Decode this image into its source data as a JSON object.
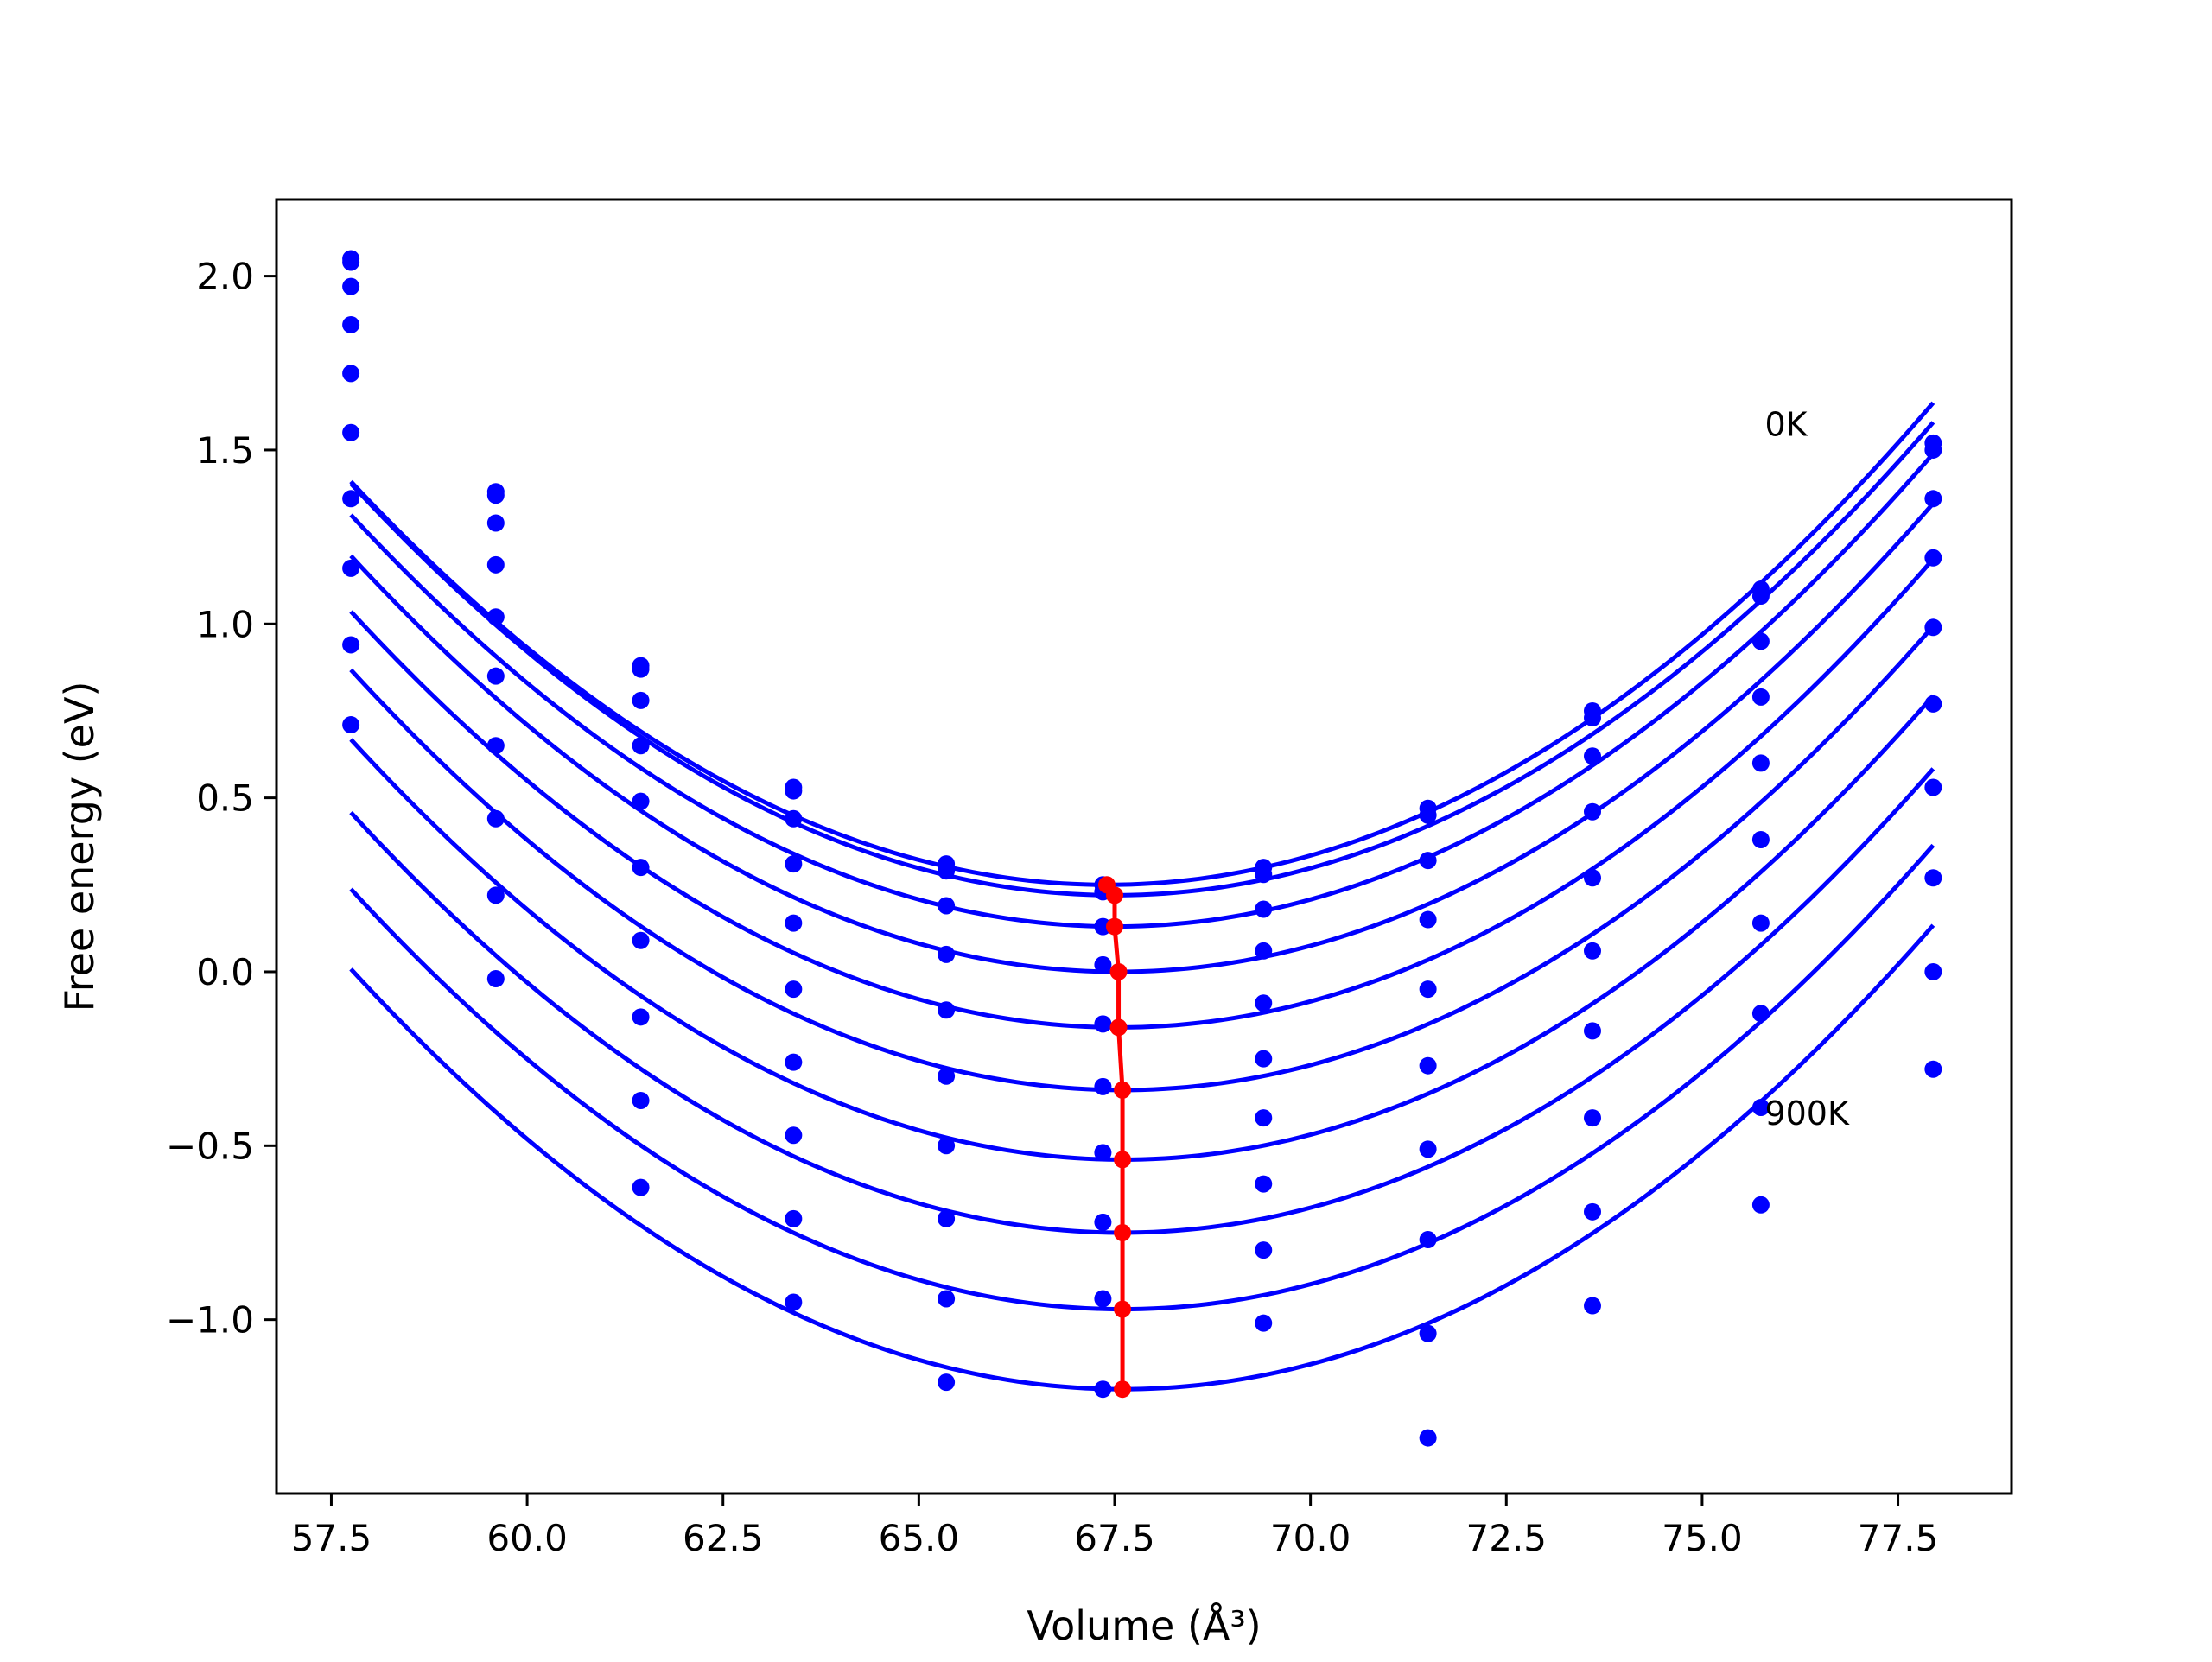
{
  "chart_data": {
    "type": "line",
    "xlabel": "Volume (Å³)",
    "ylabel": "Free energy (eV)",
    "xlim": [
      56.8,
      78.95
    ],
    "ylim": [
      -1.5,
      2.22
    ],
    "xticks": [
      57.5,
      60.0,
      62.5,
      65.0,
      67.5,
      70.0,
      72.5,
      75.0,
      77.5
    ],
    "xtick_labels": [
      "57.5",
      "60.0",
      "62.5",
      "65.0",
      "67.5",
      "70.0",
      "72.5",
      "75.0",
      "77.5"
    ],
    "yticks": [
      -1.0,
      -0.5,
      0.0,
      0.5,
      1.0,
      1.5,
      2.0
    ],
    "ytick_labels": [
      "−1.0",
      "−0.5",
      "0.0",
      "0.5",
      "1.0",
      "1.5",
      "2.0"
    ],
    "grid": false,
    "volumes": [
      57.75,
      59.6,
      61.45,
      63.4,
      65.35,
      67.35,
      69.4,
      71.5,
      73.6,
      75.75,
      77.95
    ],
    "series": [
      {
        "color": "#0000ff",
        "fit": [
          0.25,
          0.01245,
          67.4
        ],
        "points": [
          2.05,
          1.38,
          0.88,
          0.53,
          0.31,
          0.25,
          0.3,
          0.47,
          0.75,
          1.1,
          1.52
        ]
      },
      {
        "color": "#0000ff",
        "fit": [
          0.22,
          0.01245,
          67.5
        ],
        "points": [
          2.04,
          1.37,
          0.87,
          0.52,
          0.29,
          0.23,
          0.28,
          0.45,
          0.73,
          1.08,
          1.5
        ]
      },
      {
        "color": "#0000ff",
        "fit": [
          0.13,
          0.01245,
          67.5
        ],
        "points": [
          1.97,
          1.29,
          0.78,
          0.44,
          0.19,
          0.13,
          0.18,
          0.32,
          0.62,
          0.95,
          1.36
        ]
      },
      {
        "color": "#0000ff",
        "fit": [
          0.0,
          0.01245,
          67.55
        ],
        "points": [
          1.86,
          1.17,
          0.65,
          0.31,
          0.05,
          0.02,
          0.06,
          0.15,
          0.46,
          0.79,
          1.19
        ]
      },
      {
        "color": "#0000ff",
        "fit": [
          -0.16,
          0.01245,
          67.55
        ],
        "points": [
          1.72,
          1.02,
          0.49,
          0.14,
          -0.11,
          -0.15,
          -0.09,
          -0.05,
          0.27,
          0.6,
          0.99
        ]
      },
      {
        "color": "#0000ff",
        "fit": [
          -0.34,
          0.01245,
          67.6
        ],
        "points": [
          1.55,
          0.85,
          0.3,
          -0.05,
          -0.3,
          -0.33,
          -0.25,
          -0.27,
          0.06,
          0.38,
          0.77
        ]
      },
      {
        "color": "#0000ff",
        "fit": [
          -0.54,
          0.01245,
          67.6
        ],
        "points": [
          1.36,
          0.65,
          0.09,
          -0.26,
          -0.5,
          -0.52,
          -0.42,
          -0.51,
          -0.17,
          0.14,
          0.53
        ]
      },
      {
        "color": "#0000ff",
        "fit": [
          -0.75,
          0.01245,
          67.6
        ],
        "points": [
          1.16,
          0.44,
          -0.13,
          -0.47,
          -0.71,
          -0.72,
          -0.61,
          -0.77,
          -0.42,
          -0.12,
          0.27
        ]
      },
      {
        "color": "#0000ff",
        "fit": [
          -0.97,
          0.01245,
          67.6
        ],
        "points": [
          0.94,
          0.22,
          -0.37,
          -0.71,
          -0.94,
          -0.94,
          -0.8,
          -1.04,
          -0.69,
          -0.39,
          0.0
        ]
      },
      {
        "color": "#0000ff",
        "fit": [
          -1.2,
          0.01245,
          67.6
        ],
        "points": [
          0.71,
          -0.02,
          -0.62,
          -0.95,
          -1.18,
          -1.2,
          -1.01,
          -1.34,
          -0.96,
          -0.67,
          -0.28
        ]
      }
    ],
    "minima_series": {
      "color": "#ff0000",
      "x": [
        67.4,
        67.5,
        67.5,
        67.55,
        67.55,
        67.6,
        67.6,
        67.6,
        67.6,
        67.6
      ],
      "y": [
        0.25,
        0.22,
        0.13,
        0.0,
        -0.16,
        -0.34,
        -0.54,
        -0.75,
        -0.97,
        -1.2
      ]
    },
    "annotations": [
      {
        "text": "0K",
        "x": 75.8,
        "y": 1.57
      },
      {
        "text": "900K",
        "x": 75.8,
        "y": -0.41
      }
    ]
  }
}
